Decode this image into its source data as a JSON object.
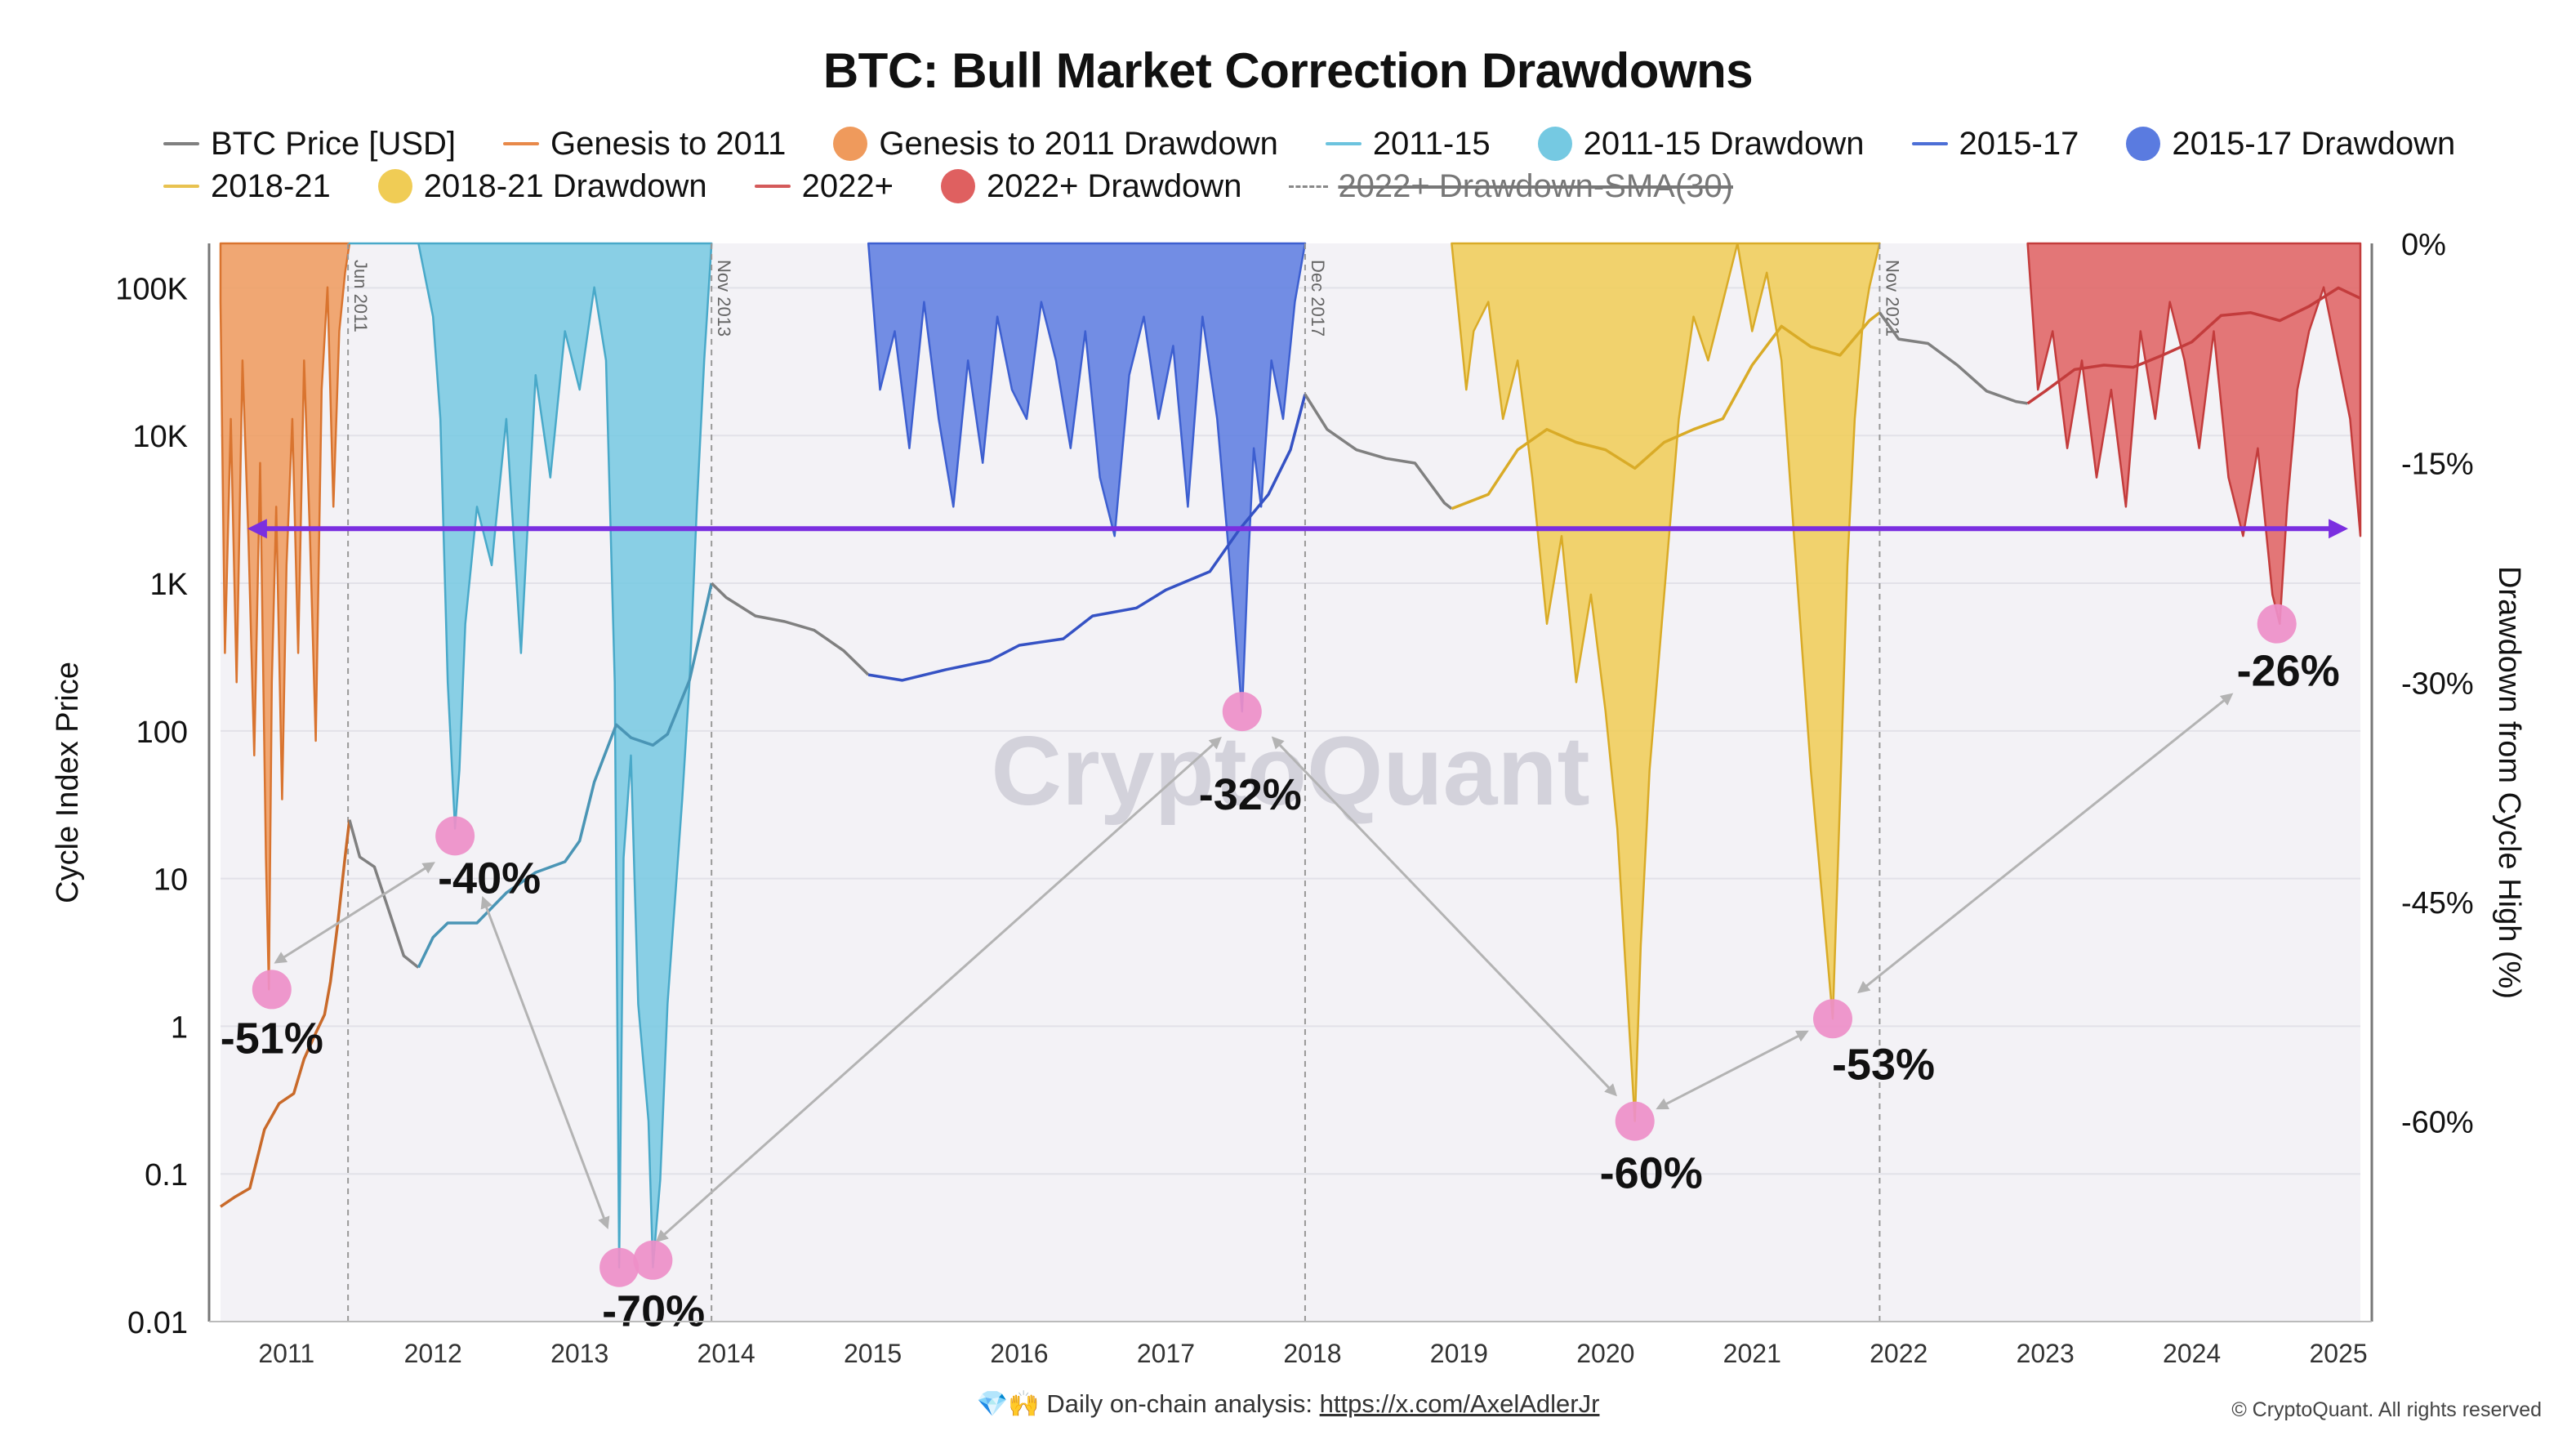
{
  "header": {
    "title": "BTC: Bull Market Correction Drawdowns"
  },
  "legend": [
    {
      "label": "BTC Price [USD]",
      "kind": "line",
      "color": "#808080"
    },
    {
      "label": "Genesis to 2011",
      "kind": "line",
      "color": "#e8894a"
    },
    {
      "label": "Genesis to 2011 Drawdown",
      "kind": "dot",
      "color": "#ef9a5c"
    },
    {
      "label": "2011-15",
      "kind": "line",
      "color": "#6cc3de"
    },
    {
      "label": "2011-15 Drawdown",
      "kind": "dot",
      "color": "#75c9e2"
    },
    {
      "label": "2015-17",
      "kind": "line",
      "color": "#4d6fd6"
    },
    {
      "label": "2015-17 Drawdown",
      "kind": "dot",
      "color": "#5a7be0"
    },
    {
      "label": "2018-21",
      "kind": "line",
      "color": "#e8c250"
    },
    {
      "label": "2018-21 Drawdown",
      "kind": "dot",
      "color": "#f0cc55"
    },
    {
      "label": "2022+",
      "kind": "line",
      "color": "#d45a5a"
    },
    {
      "label": "2022+ Drawdown",
      "kind": "dot",
      "color": "#df6060"
    },
    {
      "label": "2022+ Drawdown-SMA(30)",
      "kind": "dash",
      "color": "#888888",
      "hidden": true
    }
  ],
  "footer": {
    "prefix": "💎🙌 Daily on-chain analysis: ",
    "link": "https://x.com/AxelAdlerJr"
  },
  "copyright": "© CryptoQuant. All rights reserved",
  "watermark": "CryptoQuant",
  "colors": {
    "accent": "#7b2fe0",
    "marker": "#ee8fc8",
    "gray": "#888888"
  },
  "chart_data": {
    "type": "area",
    "title": "BTC: Bull Market Correction Drawdowns",
    "ylabel": "Cycle Index Price",
    "y2label": "Drawdown from Cycle High (%)",
    "xlim": [
      2010.55,
      2025.15
    ],
    "ylim": [
      0.01,
      200000
    ],
    "y_scale": "log",
    "y2lim": [
      -73.7,
      0
    ],
    "y_ticks": [
      "0.01",
      "0.1",
      "1",
      "10",
      "100",
      "1K",
      "10K",
      "100K"
    ],
    "y_tick_values": [
      0.01,
      0.1,
      1,
      10,
      100,
      1000,
      10000,
      100000
    ],
    "y2_ticks": [
      "0%",
      "-15%",
      "-30%",
      "-45%",
      "-60%"
    ],
    "y2_tick_values": [
      0,
      -15,
      -30,
      -45,
      -60
    ],
    "x_ticks": [
      "2011",
      "2012",
      "2013",
      "2014",
      "2015",
      "2016",
      "2017",
      "2018",
      "2019",
      "2020",
      "2021",
      "2022",
      "2023",
      "2024",
      "2025"
    ],
    "x_tick_values": [
      2011,
      2012,
      2013,
      2014,
      2015,
      2016,
      2017,
      2018,
      2019,
      2020,
      2021,
      2022,
      2023,
      2024,
      2025
    ],
    "grid": true,
    "cycle_markers": [
      {
        "label": "Jun 2011",
        "x": 2011.42
      },
      {
        "label": "Nov 2013",
        "x": 2013.9
      },
      {
        "label": "Dec 2017",
        "x": 2017.95
      },
      {
        "label": "Nov 2021",
        "x": 2021.87
      }
    ],
    "reference_line": {
      "y_percent": -19.5,
      "x_start": 2010.8,
      "x_end": 2025.0,
      "color": "#7b2fe0"
    },
    "drawdown_series": [
      {
        "name": "Genesis to 2011 Drawdown",
        "color": "#ef9a5c",
        "stroke": "#d9742f",
        "x": [
          2010.55,
          2010.58,
          2010.62,
          2010.66,
          2010.7,
          2010.74,
          2010.78,
          2010.82,
          2010.86,
          2010.88,
          2010.9,
          2010.93,
          2010.97,
          2011.0,
          2011.04,
          2011.08,
          2011.12,
          2011.16,
          2011.2,
          2011.24,
          2011.28,
          2011.32,
          2011.36,
          2011.4,
          2011.43
        ],
        "y": [
          -4,
          -28,
          -12,
          -30,
          -8,
          -20,
          -35,
          -15,
          -42,
          -51,
          -30,
          -18,
          -38,
          -22,
          -12,
          -28,
          -8,
          -20,
          -34,
          -10,
          -3,
          -18,
          -6,
          -2,
          0
        ]
      },
      {
        "name": "2011-15 Drawdown",
        "color": "#75c9e2",
        "stroke": "#49a9c9",
        "x": [
          2011.43,
          2011.5,
          2011.6,
          2011.75,
          2011.9,
          2012.0,
          2012.05,
          2012.1,
          2012.15,
          2012.18,
          2012.22,
          2012.3,
          2012.4,
          2012.5,
          2012.6,
          2012.7,
          2012.8,
          2012.9,
          2013.0,
          2013.1,
          2013.18,
          2013.24,
          2013.27,
          2013.3,
          2013.35,
          2013.4,
          2013.47,
          2013.5,
          2013.55,
          2013.6,
          2013.65,
          2013.7,
          2013.75,
          2013.8,
          2013.85,
          2013.9
        ],
        "y": [
          0,
          0,
          0,
          0,
          0,
          -5,
          -12,
          -30,
          -40,
          -36,
          -26,
          -18,
          -22,
          -12,
          -28,
          -9,
          -16,
          -6,
          -10,
          -3,
          -8,
          -30,
          -70,
          -42,
          -35,
          -52,
          -60,
          -70,
          -64,
          -52,
          -45,
          -38,
          -30,
          -18,
          -8,
          0
        ]
      },
      {
        "name": "2015-17 Drawdown",
        "color": "#5a7be0",
        "stroke": "#3d5fd0",
        "x": [
          2014.97,
          2015.05,
          2015.15,
          2015.25,
          2015.35,
          2015.45,
          2015.55,
          2015.65,
          2015.75,
          2015.85,
          2015.95,
          2016.05,
          2016.15,
          2016.25,
          2016.35,
          2016.45,
          2016.55,
          2016.65,
          2016.75,
          2016.85,
          2016.95,
          2017.05,
          2017.15,
          2017.25,
          2017.35,
          2017.42,
          2017.47,
          2017.52,
          2017.56,
          2017.6,
          2017.65,
          2017.72,
          2017.8,
          2017.88,
          2017.95
        ],
        "y": [
          0,
          -10,
          -6,
          -14,
          -4,
          -12,
          -18,
          -8,
          -15,
          -5,
          -10,
          -12,
          -4,
          -8,
          -14,
          -6,
          -16,
          -20,
          -9,
          -5,
          -12,
          -7,
          -18,
          -5,
          -12,
          -20,
          -26,
          -32,
          -22,
          -14,
          -18,
          -8,
          -12,
          -4,
          0
        ]
      },
      {
        "name": "2018-21 Drawdown",
        "color": "#f0cc55",
        "stroke": "#d9ab27",
        "x": [
          2018.95,
          2019.05,
          2019.1,
          2019.2,
          2019.3,
          2019.4,
          2019.5,
          2019.6,
          2019.7,
          2019.8,
          2019.9,
          2020.0,
          2020.08,
          2020.14,
          2020.2,
          2020.24,
          2020.3,
          2020.4,
          2020.5,
          2020.6,
          2020.7,
          2020.8,
          2020.9,
          2021.0,
          2021.1,
          2021.2,
          2021.3,
          2021.4,
          2021.48,
          2021.55,
          2021.6,
          2021.65,
          2021.7,
          2021.75,
          2021.8,
          2021.87
        ],
        "y": [
          0,
          -10,
          -6,
          -4,
          -12,
          -8,
          -16,
          -26,
          -20,
          -30,
          -24,
          -32,
          -40,
          -50,
          -60,
          -48,
          -36,
          -24,
          -12,
          -5,
          -8,
          -4,
          0,
          -6,
          -2,
          -8,
          -22,
          -36,
          -45,
          -53,
          -38,
          -22,
          -12,
          -6,
          -3,
          0
        ]
      },
      {
        "name": "2022+ Drawdown",
        "color": "#df6060",
        "stroke": "#c33c3c",
        "x": [
          2022.88,
          2022.95,
          2023.05,
          2023.15,
          2023.25,
          2023.35,
          2023.45,
          2023.55,
          2023.65,
          2023.75,
          2023.85,
          2023.95,
          2024.05,
          2024.15,
          2024.25,
          2024.35,
          2024.45,
          2024.55,
          2024.6,
          2024.65,
          2024.72,
          2024.8,
          2024.9,
          2025.0,
          2025.08,
          2025.15
        ],
        "y": [
          0,
          -10,
          -6,
          -14,
          -8,
          -16,
          -10,
          -18,
          -6,
          -12,
          -4,
          -8,
          -14,
          -6,
          -16,
          -20,
          -14,
          -24,
          -26,
          -18,
          -10,
          -6,
          -3,
          -8,
          -12,
          -20
        ]
      }
    ],
    "price_series": [
      {
        "name": "Genesis to 2011",
        "color": "#c96a2a",
        "x": [
          2010.55,
          2010.65,
          2010.75,
          2010.85,
          2010.95,
          2011.05,
          2011.12,
          2011.2,
          2011.26,
          2011.3,
          2011.35,
          2011.4,
          2011.43
        ],
        "y": [
          0.06,
          0.07,
          0.08,
          0.2,
          0.3,
          0.35,
          0.6,
          0.9,
          1.2,
          2,
          5,
          14,
          25
        ]
      },
      {
        "name": "BTC Price [USD]",
        "color": "#808080",
        "x": [
          2011.43,
          2011.5,
          2011.6,
          2011.7,
          2011.8,
          2011.9
        ],
        "y": [
          25,
          14,
          12,
          6,
          3,
          2.5
        ]
      },
      {
        "name": "2011-15",
        "color": "#4a95b5",
        "x": [
          2011.9,
          2012.0,
          2012.1,
          2012.3,
          2012.5,
          2012.7,
          2012.9,
          2013.0,
          2013.1,
          2013.25,
          2013.35,
          2013.5,
          2013.6,
          2013.75,
          2013.85,
          2013.9
        ],
        "y": [
          2.5,
          4,
          5,
          5,
          8,
          11,
          13,
          18,
          45,
          110,
          90,
          80,
          95,
          220,
          600,
          1000
        ]
      },
      {
        "name": "BTC Price [USD]",
        "color": "#808080",
        "x": [
          2013.9,
          2014.0,
          2014.2,
          2014.4,
          2014.6,
          2014.8,
          2014.97
        ],
        "y": [
          1000,
          800,
          600,
          550,
          480,
          350,
          240
        ]
      },
      {
        "name": "2015-17",
        "color": "#3552c4",
        "x": [
          2014.97,
          2015.2,
          2015.5,
          2015.8,
          2016.0,
          2016.3,
          2016.5,
          2016.8,
          2017.0,
          2017.3,
          2017.5,
          2017.7,
          2017.85,
          2017.95
        ],
        "y": [
          240,
          220,
          260,
          300,
          380,
          420,
          600,
          680,
          900,
          1200,
          2300,
          4000,
          8000,
          19000
        ]
      },
      {
        "name": "BTC Price [USD]",
        "color": "#808080",
        "x": [
          2017.95,
          2018.1,
          2018.3,
          2018.5,
          2018.7,
          2018.9,
          2018.95
        ],
        "y": [
          19000,
          11000,
          8000,
          7000,
          6500,
          3500,
          3200
        ]
      },
      {
        "name": "2018-21",
        "color": "#d9ab27",
        "x": [
          2018.95,
          2019.2,
          2019.4,
          2019.6,
          2019.8,
          2020.0,
          2020.2,
          2020.4,
          2020.6,
          2020.8,
          2021.0,
          2021.2,
          2021.4,
          2021.6,
          2021.8,
          2021.87
        ],
        "y": [
          3200,
          4000,
          8000,
          11000,
          9000,
          8000,
          6000,
          9000,
          11000,
          13000,
          30000,
          55000,
          40000,
          35000,
          60000,
          68000
        ]
      },
      {
        "name": "BTC Price [USD]",
        "color": "#808080",
        "x": [
          2021.87,
          2022.0,
          2022.2,
          2022.4,
          2022.6,
          2022.8,
          2022.88
        ],
        "y": [
          68000,
          45000,
          42000,
          30000,
          20000,
          17000,
          16500
        ]
      },
      {
        "name": "2022+",
        "color": "#c33c3c",
        "x": [
          2022.88,
          2023.0,
          2023.2,
          2023.4,
          2023.6,
          2023.8,
          2024.0,
          2024.2,
          2024.4,
          2024.6,
          2024.8,
          2025.0,
          2025.15
        ],
        "y": [
          16500,
          20000,
          28000,
          30000,
          29000,
          35000,
          43000,
          65000,
          68000,
          60000,
          75000,
          100000,
          85000
        ]
      }
    ],
    "annotations": [
      {
        "label": "-51%",
        "x": 2010.9,
        "y_percent": -51,
        "label_dx": 0,
        "label_dy": 58
      },
      {
        "label": "-40%",
        "x": 2012.15,
        "y_percent": -40.5,
        "label_dx": 42,
        "label_dy": 50
      },
      {
        "label": "-70%",
        "x": 2013.27,
        "y_percent": -70,
        "label_dx": 42,
        "label_dy": 52
      },
      {
        "label": "-70%",
        "x": 2013.5,
        "y_percent": -69.5,
        "label_dx": 0,
        "label_dy": 0,
        "hide_label": true
      },
      {
        "label": "-32%",
        "x": 2017.52,
        "y_percent": -32,
        "label_dx": 10,
        "label_dy": 100
      },
      {
        "label": "-60%",
        "x": 2020.2,
        "y_percent": -60,
        "label_dx": 20,
        "label_dy": 62
      },
      {
        "label": "-53%",
        "x": 2021.55,
        "y_percent": -53,
        "label_dx": 62,
        "label_dy": 54
      },
      {
        "label": "-26%",
        "x": 2024.58,
        "y_percent": -26,
        "label_dx": 14,
        "label_dy": 56
      }
    ],
    "connectors": [
      {
        "from": [
          2010.95,
          -49
        ],
        "to": [
          2011.98,
          -42.5
        ]
      },
      {
        "from": [
          2012.35,
          -45
        ],
        "to": [
          2013.18,
          -67
        ]
      },
      {
        "from": [
          2013.55,
          -68
        ],
        "to": [
          2017.35,
          -34
        ]
      },
      {
        "from": [
          2017.75,
          -34
        ],
        "to": [
          2020.05,
          -58
        ]
      },
      {
        "from": [
          2020.38,
          -59
        ],
        "to": [
          2021.35,
          -54
        ]
      },
      {
        "from": [
          2021.75,
          -51
        ],
        "to": [
          2024.25,
          -31
        ]
      }
    ]
  }
}
